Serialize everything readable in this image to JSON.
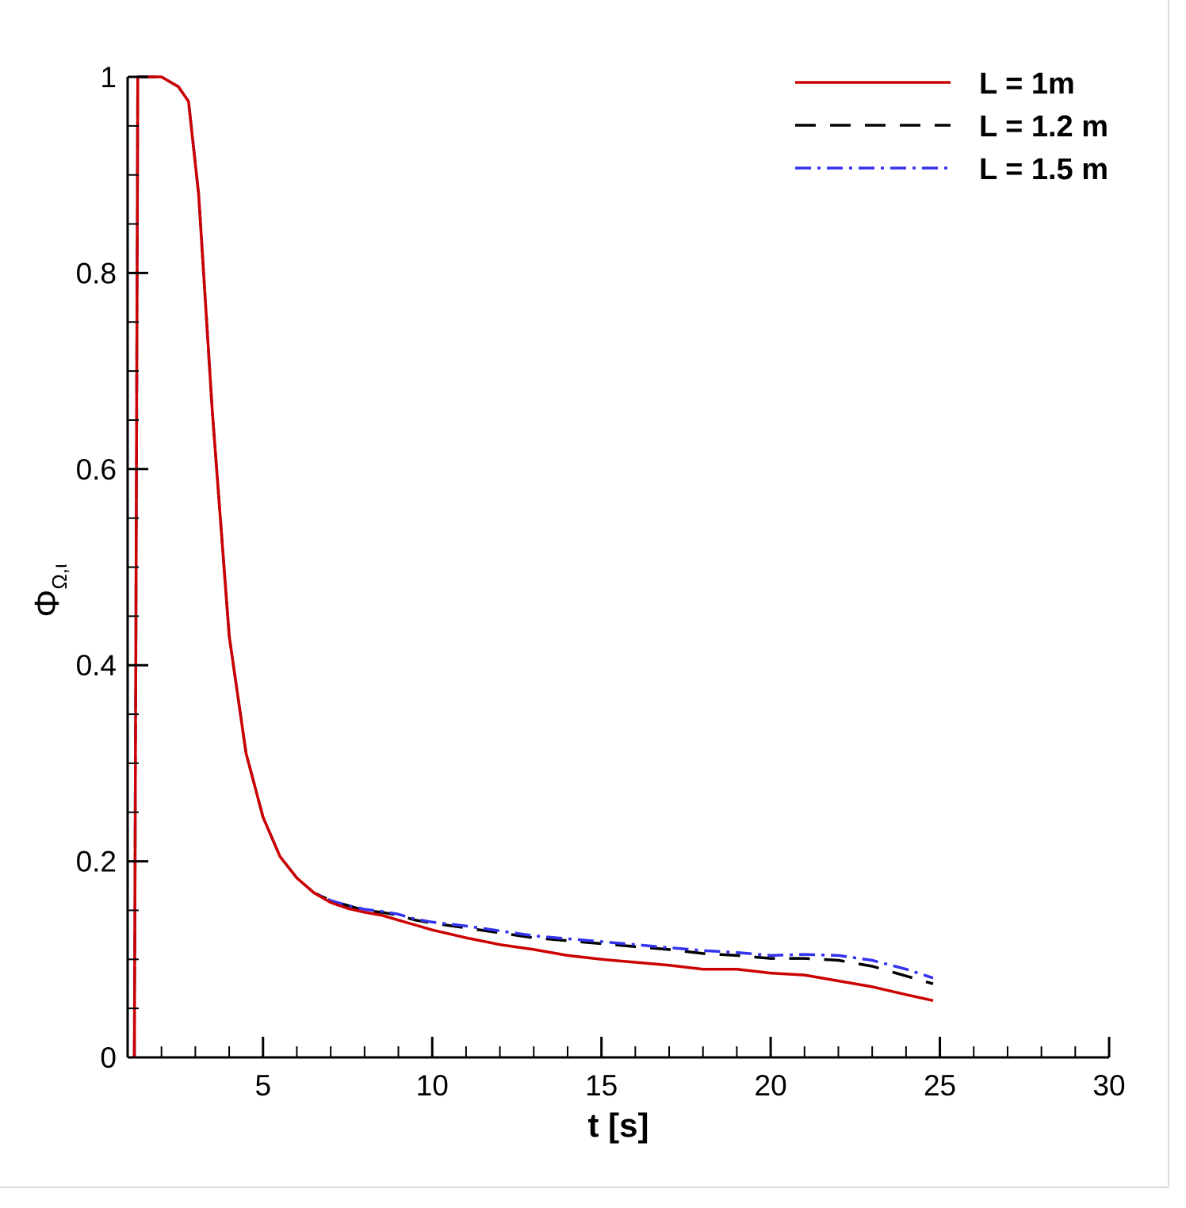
{
  "chart_data": {
    "type": "line",
    "xlabel": "t [s]",
    "ylabel": "Φ",
    "ylabel_subscript": "Ω,ι",
    "xlim": [
      1.0,
      30
    ],
    "ylim": [
      0,
      1
    ],
    "xticks": [
      5,
      10,
      15,
      20,
      25,
      30
    ],
    "xtick_labels": [
      "5",
      "10",
      "15",
      "20",
      "25",
      "30"
    ],
    "yticks": [
      0,
      0.2,
      0.4,
      0.6,
      0.8,
      1
    ],
    "ytick_labels": [
      "0",
      "0.2",
      "0.4",
      "0.6",
      "0.8",
      "1"
    ],
    "grid": false,
    "legend_position": "top-right",
    "series": [
      {
        "name": "L = 1m",
        "color": "#cc0000",
        "dash": "solid",
        "x": [
          1.2,
          1.25,
          1.3,
          1.4,
          1.5,
          2.0,
          2.5,
          2.8,
          3.1,
          3.5,
          4.0,
          4.5,
          5.0,
          5.5,
          6.0,
          6.5,
          7.0,
          7.5,
          8.0,
          8.5,
          9.0,
          9.5,
          10.0,
          11,
          12,
          13,
          14,
          15,
          16,
          17,
          18,
          19,
          20,
          21,
          22,
          23,
          24,
          24.8
        ],
        "y": [
          0.0,
          0.5,
          1.0,
          1.0,
          1.0,
          1.0,
          0.99,
          0.975,
          0.88,
          0.66,
          0.43,
          0.31,
          0.245,
          0.205,
          0.183,
          0.168,
          0.158,
          0.152,
          0.148,
          0.145,
          0.14,
          0.135,
          0.13,
          0.122,
          0.115,
          0.11,
          0.104,
          0.1,
          0.097,
          0.094,
          0.09,
          0.09,
          0.086,
          0.084,
          0.078,
          0.072,
          0.064,
          0.058
        ]
      },
      {
        "name": "L = 1.2 m",
        "color": "#000000",
        "dash": "dashed",
        "x": [
          1.2,
          1.25,
          1.3,
          1.4,
          1.5,
          2.0,
          2.5,
          2.8,
          3.1,
          3.5,
          4.0,
          4.5,
          5.0,
          5.5,
          6.0,
          6.5,
          7.0,
          7.5,
          8.0,
          8.5,
          9.0,
          9.5,
          10.0,
          11,
          12,
          13,
          14,
          15,
          16,
          17,
          18,
          19,
          20,
          21,
          22,
          23,
          24,
          24.8
        ],
        "y": [
          0.0,
          0.5,
          1.0,
          1.0,
          1.0,
          1.0,
          0.99,
          0.975,
          0.88,
          0.66,
          0.43,
          0.31,
          0.245,
          0.205,
          0.183,
          0.168,
          0.16,
          0.155,
          0.15,
          0.148,
          0.145,
          0.14,
          0.137,
          0.132,
          0.127,
          0.122,
          0.119,
          0.116,
          0.113,
          0.11,
          0.106,
          0.104,
          0.101,
          0.101,
          0.099,
          0.093,
          0.083,
          0.075
        ]
      },
      {
        "name": "L = 1.5 m",
        "color": "#3333ee",
        "dash": "dashdot",
        "x": [
          1.2,
          1.25,
          1.3,
          1.4,
          1.5,
          2.0,
          2.5,
          2.8,
          3.1,
          3.5,
          4.0,
          4.5,
          5.0,
          5.5,
          6.0,
          6.5,
          7.0,
          7.5,
          8.0,
          8.5,
          9.0,
          9.5,
          10.0,
          11,
          12,
          13,
          14,
          15,
          16,
          17,
          18,
          19,
          20,
          21,
          22,
          23,
          24,
          24.8
        ],
        "y": [
          0.0,
          0.5,
          1.0,
          1.0,
          1.0,
          1.0,
          0.99,
          0.975,
          0.88,
          0.66,
          0.43,
          0.31,
          0.245,
          0.205,
          0.183,
          0.168,
          0.16,
          0.155,
          0.151,
          0.149,
          0.146,
          0.141,
          0.138,
          0.134,
          0.129,
          0.124,
          0.121,
          0.118,
          0.115,
          0.112,
          0.109,
          0.107,
          0.104,
          0.105,
          0.104,
          0.099,
          0.09,
          0.081
        ]
      }
    ]
  }
}
